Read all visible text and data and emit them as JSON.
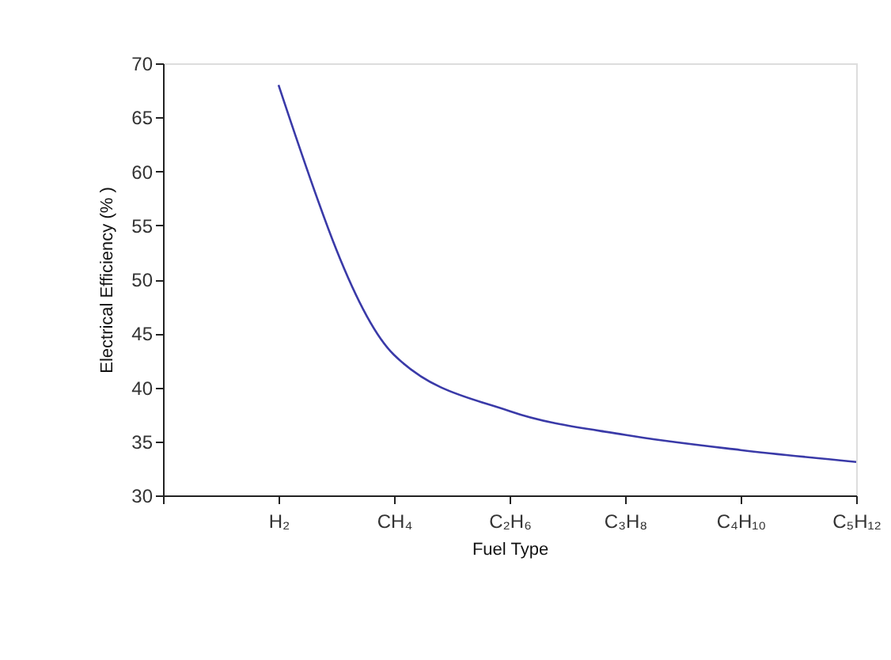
{
  "chart_data": {
    "type": "line",
    "xlabel": "Fuel Type",
    "ylabel": "Electrical Efficiency (% )",
    "categories": [
      null,
      "H₂",
      "CH₄",
      "C₂H₆",
      "C₃H₈",
      "C₄H₁₀",
      "C₅H₁₂"
    ],
    "series": [
      {
        "color": "#3a3aa8",
        "values": [
          null,
          68,
          43,
          37.8,
          35.6,
          34.2,
          33.1
        ]
      }
    ],
    "ylim": [
      30,
      70
    ],
    "yticks": [
      30,
      35,
      40,
      45,
      50,
      55,
      60,
      65,
      70
    ],
    "grid": false,
    "marker": "none",
    "line_style": "solid"
  }
}
